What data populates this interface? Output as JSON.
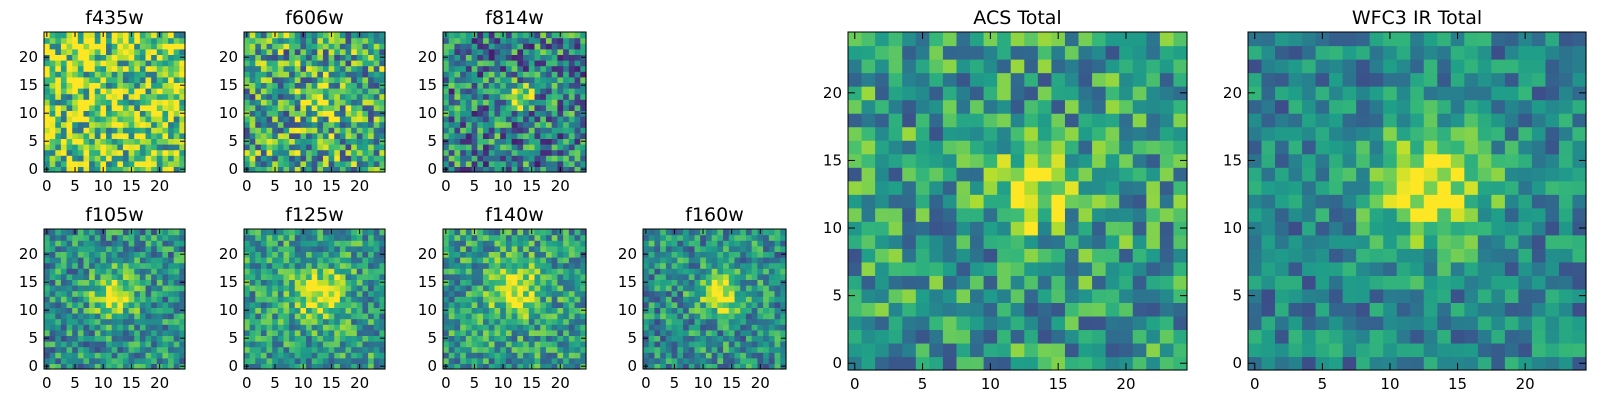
{
  "chart_data": [
    {
      "type": "heatmap",
      "title": "f435w",
      "xlim": [
        0,
        24
      ],
      "ylim": [
        0,
        24
      ],
      "xticks": [
        "0",
        "5",
        "10",
        "15",
        "20"
      ],
      "yticks": [
        "0",
        "5",
        "10",
        "15",
        "20"
      ],
      "colormap": "viridis",
      "grid": false,
      "source": {
        "x": 10,
        "y": 12,
        "peak": 0.0,
        "sigma": 3.0,
        "noise": 0.85,
        "base": 0.78,
        "seed": 11
      }
    },
    {
      "type": "heatmap",
      "title": "f606w",
      "xlim": [
        0,
        24
      ],
      "ylim": [
        0,
        24
      ],
      "xticks": [
        "0",
        "5",
        "10",
        "15",
        "20"
      ],
      "yticks": [
        "0",
        "5",
        "10",
        "15",
        "20"
      ],
      "colormap": "viridis",
      "grid": false,
      "source": {
        "x": 13,
        "y": 12,
        "peak": 0.35,
        "sigma": 2.0,
        "noise": 0.8,
        "base": 0.6,
        "seed": 23
      }
    },
    {
      "type": "heatmap",
      "title": "f814w",
      "xlim": [
        0,
        24
      ],
      "ylim": [
        0,
        24
      ],
      "xticks": [
        "0",
        "5",
        "10",
        "15",
        "20"
      ],
      "yticks": [
        "0",
        "5",
        "10",
        "15",
        "20"
      ],
      "colormap": "viridis",
      "grid": false,
      "source": {
        "x": 13,
        "y": 13,
        "peak": 0.55,
        "sigma": 1.5,
        "noise": 0.75,
        "base": 0.45,
        "seed": 37
      }
    },
    {
      "type": "heatmap",
      "title": "f105w",
      "xlim": [
        0,
        24
      ],
      "ylim": [
        0,
        24
      ],
      "xticks": [
        "0",
        "5",
        "10",
        "15",
        "20"
      ],
      "yticks": [
        "0",
        "5",
        "10",
        "15",
        "20"
      ],
      "colormap": "viridis",
      "grid": false,
      "source": {
        "x": 12,
        "y": 13,
        "peak": 0.5,
        "sigma": 2.8,
        "noise": 0.55,
        "base": 0.5,
        "seed": 41
      }
    },
    {
      "type": "heatmap",
      "title": "f125w",
      "xlim": [
        0,
        24
      ],
      "ylim": [
        0,
        24
      ],
      "xticks": [
        "0",
        "5",
        "10",
        "15",
        "20"
      ],
      "yticks": [
        "0",
        "5",
        "10",
        "15",
        "20"
      ],
      "colormap": "viridis",
      "grid": false,
      "source": {
        "x": 13,
        "y": 13,
        "peak": 0.45,
        "sigma": 3.2,
        "noise": 0.55,
        "base": 0.55,
        "seed": 53
      }
    },
    {
      "type": "heatmap",
      "title": "f140w",
      "xlim": [
        0,
        24
      ],
      "ylim": [
        0,
        24
      ],
      "xticks": [
        "0",
        "5",
        "10",
        "15",
        "20"
      ],
      "yticks": [
        "0",
        "5",
        "10",
        "15",
        "20"
      ],
      "colormap": "viridis",
      "grid": false,
      "source": {
        "x": 12,
        "y": 14,
        "peak": 0.45,
        "sigma": 3.2,
        "noise": 0.55,
        "base": 0.55,
        "seed": 67
      }
    },
    {
      "type": "heatmap",
      "title": "f160w",
      "xlim": [
        0,
        24
      ],
      "ylim": [
        0,
        24
      ],
      "xticks": [
        "0",
        "5",
        "10",
        "15",
        "20"
      ],
      "yticks": [
        "0",
        "5",
        "10",
        "15",
        "20"
      ],
      "colormap": "viridis",
      "grid": false,
      "source": {
        "x": 13,
        "y": 13,
        "peak": 0.6,
        "sigma": 2.4,
        "noise": 0.55,
        "base": 0.5,
        "seed": 79
      }
    },
    {
      "type": "heatmap",
      "title": "ACS Total",
      "xlim": [
        0,
        24
      ],
      "ylim": [
        0,
        24
      ],
      "xticks": [
        "0",
        "5",
        "10",
        "15",
        "20"
      ],
      "yticks": [
        "0",
        "5",
        "10",
        "15",
        "20"
      ],
      "colormap": "viridis",
      "grid": false,
      "source": {
        "x": 13,
        "y": 13,
        "peak": 0.5,
        "sigma": 2.0,
        "noise": 0.6,
        "base": 0.55,
        "seed": 91
      }
    },
    {
      "type": "heatmap",
      "title": "WFC3 IR Total",
      "xlim": [
        0,
        24
      ],
      "ylim": [
        0,
        24
      ],
      "xticks": [
        "0",
        "5",
        "10",
        "15",
        "20"
      ],
      "yticks": [
        "0",
        "5",
        "10",
        "15",
        "20"
      ],
      "colormap": "viridis",
      "grid": false,
      "source": {
        "x": 13,
        "y": 13,
        "peak": 0.55,
        "sigma": 3.3,
        "noise": 0.45,
        "base": 0.45,
        "seed": 103
      }
    }
  ]
}
